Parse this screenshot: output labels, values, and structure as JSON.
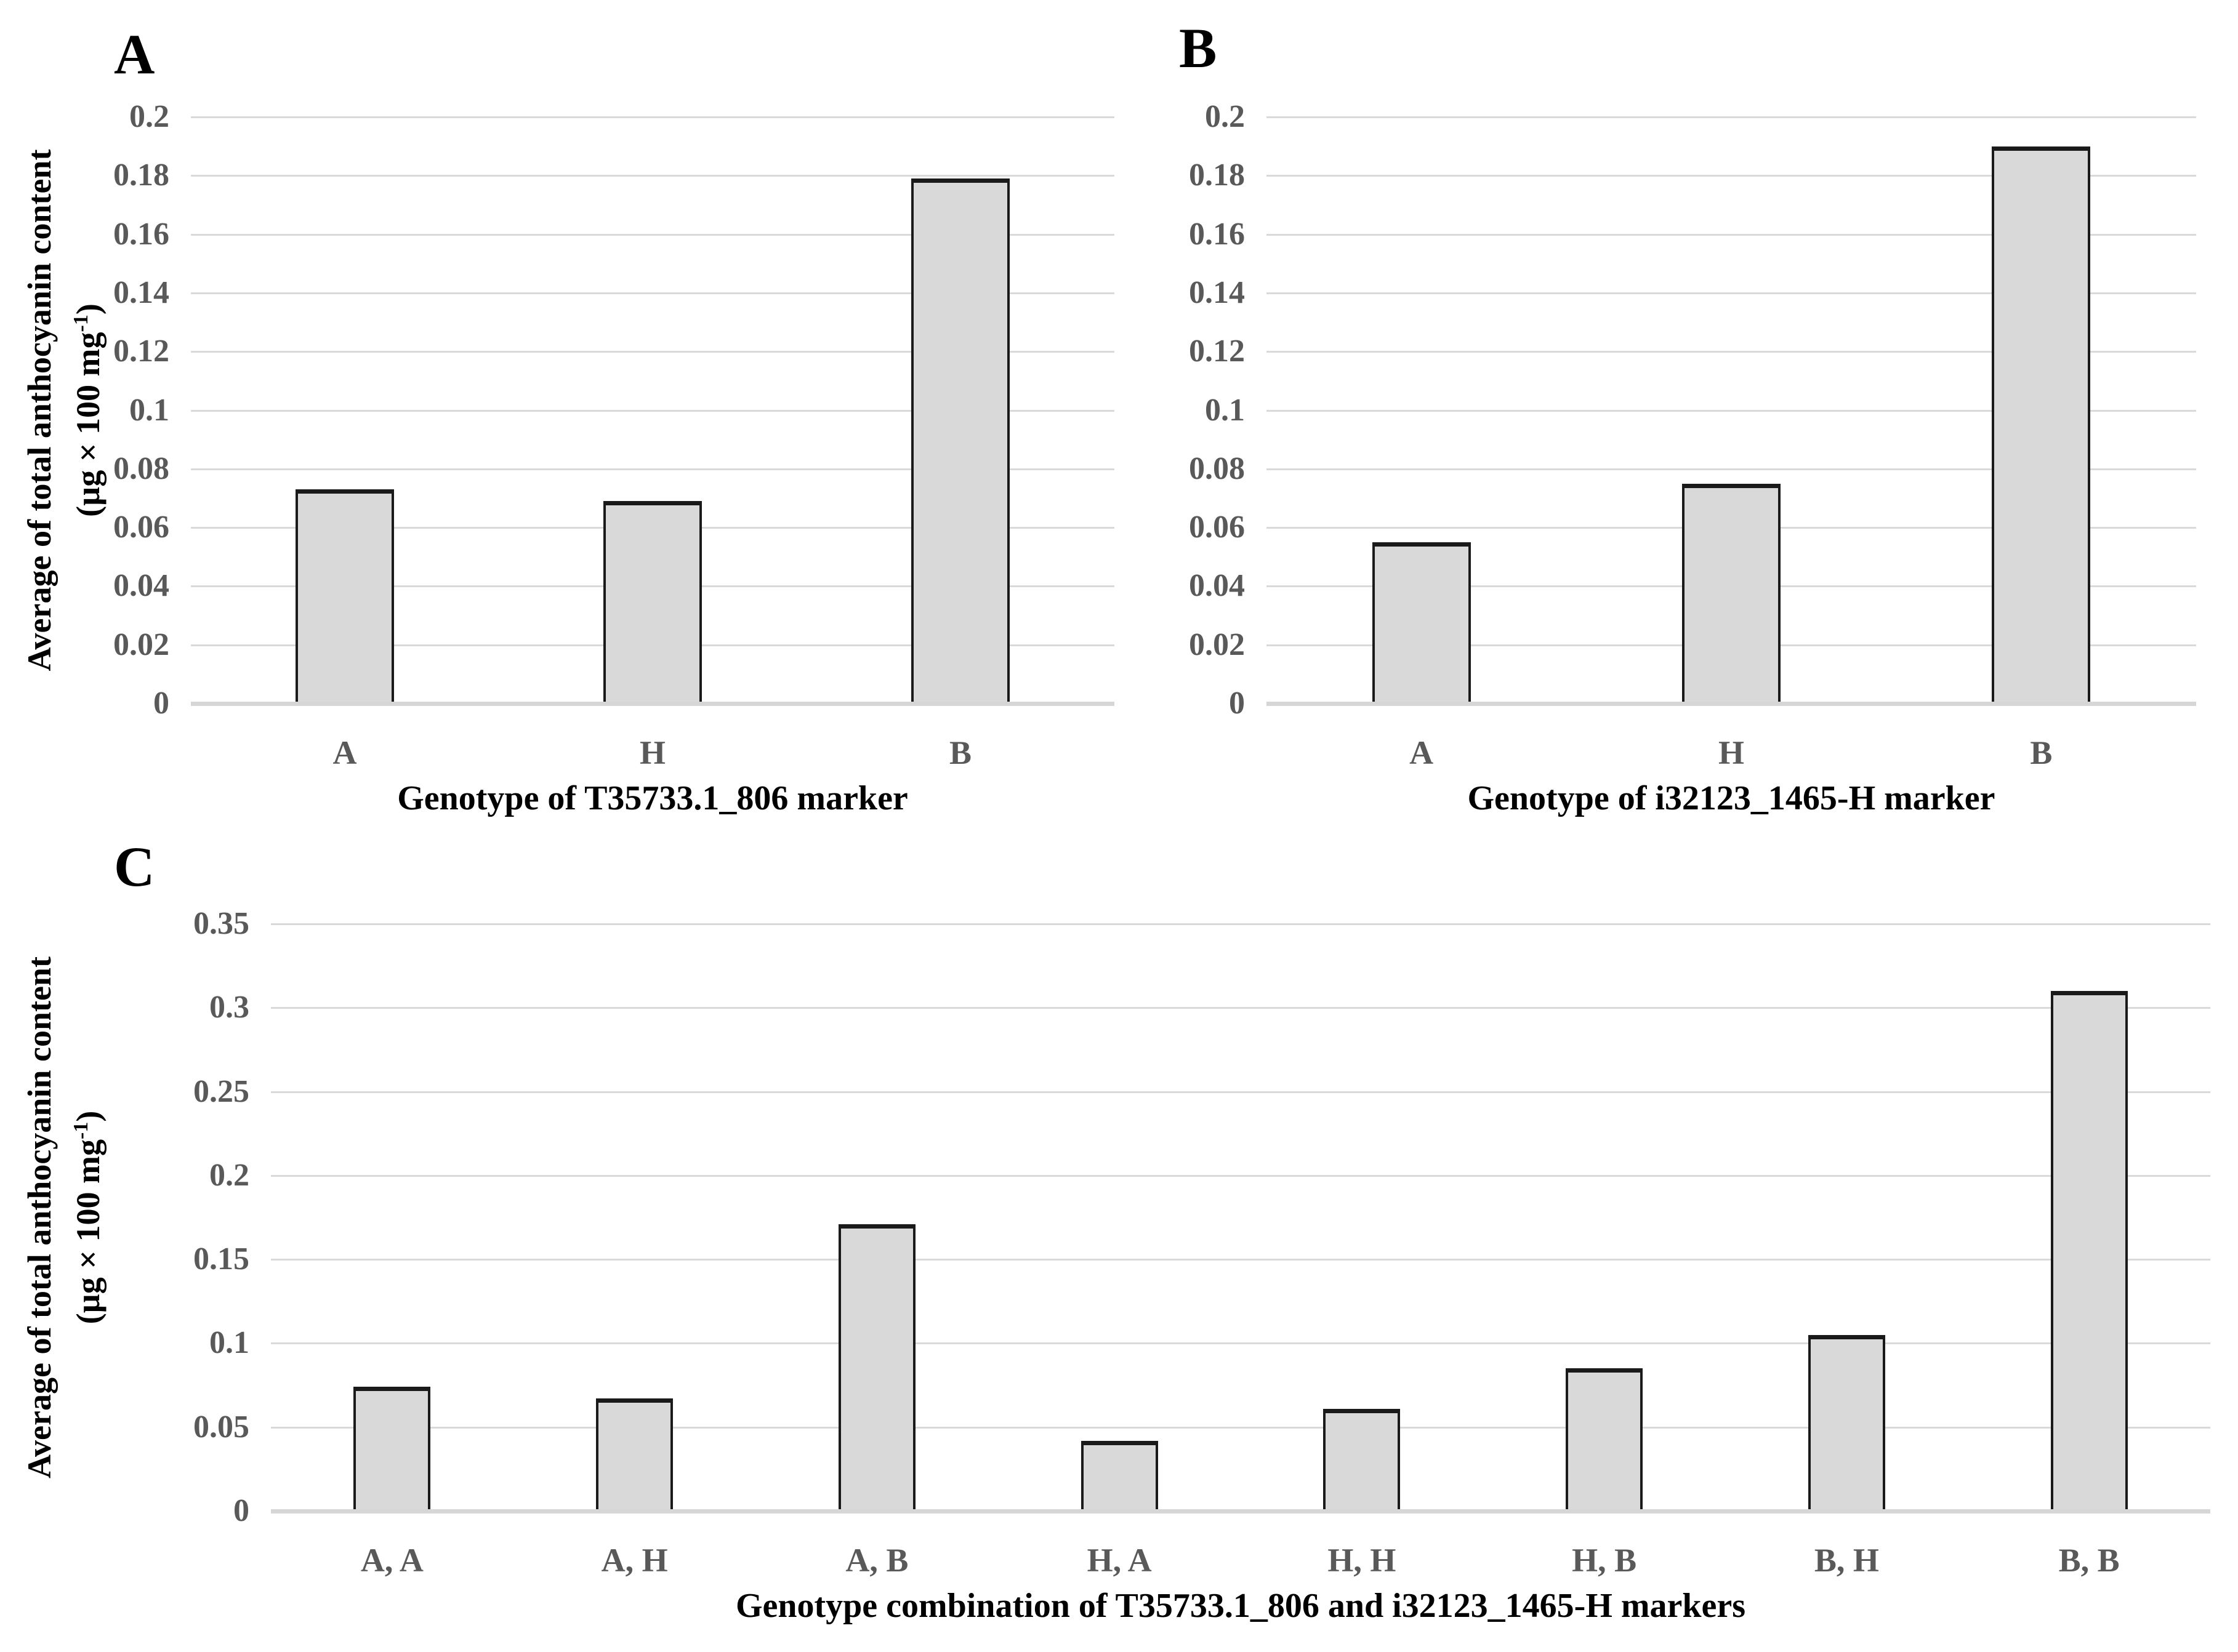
{
  "ylabel": {
    "line1": "Average of total anthocyanin content",
    "unit_prefix": "(µg × 100 mg",
    "unit_exp": "-1",
    "unit_suffix": ")"
  },
  "colors": {
    "bar_fill": "#d9d9d9",
    "bar_border": "#1a1a1a",
    "grid_line": "#d9d9d9",
    "tick_text": "#595959",
    "title_text": "#000000",
    "background": "#ffffff"
  },
  "chart_data": [
    {
      "type": "bar",
      "panel_label": "A",
      "title": "",
      "xlabel": "Genotype of T35733.1_806 marker",
      "ylabel": "Average of total anthocyanin content (µg × 100 mg⁻¹)",
      "categories": [
        "A",
        "H",
        "B"
      ],
      "values": [
        0.073,
        0.069,
        0.179
      ],
      "ylim": [
        0,
        0.2
      ],
      "ytick_step": 0.02,
      "ytick_labels": [
        "0.2",
        "0.18",
        "0.16",
        "0.14",
        "0.12",
        "0.1",
        "0.08",
        "0.06",
        "0.04",
        "0.02",
        "0"
      ],
      "grid": true,
      "legend_position": "none"
    },
    {
      "type": "bar",
      "panel_label": "B",
      "title": "",
      "xlabel": "Genotype of i32123_1465-H marker",
      "ylabel": "Average of total anthocyanin content (µg × 100 mg⁻¹)",
      "categories": [
        "A",
        "H",
        "B"
      ],
      "values": [
        0.055,
        0.075,
        0.19
      ],
      "ylim": [
        0,
        0.2
      ],
      "ytick_step": 0.02,
      "ytick_labels": [
        "0.2",
        "0.18",
        "0.16",
        "0.14",
        "0.12",
        "0.1",
        "0.08",
        "0.06",
        "0.04",
        "0.02",
        "0"
      ],
      "grid": true,
      "legend_position": "none"
    },
    {
      "type": "bar",
      "panel_label": "C",
      "title": "",
      "xlabel": "Genotype combination of T35733.1_806 and i32123_1465-H markers",
      "ylabel": "Average of total anthocyanin content (µg × 100 mg⁻¹)",
      "categories": [
        "A, A",
        "A, H",
        "A, B",
        "H, A",
        "H, H",
        "H, B",
        "B, H",
        "B, B"
      ],
      "values": [
        0.074,
        0.067,
        0.171,
        0.042,
        0.061,
        0.085,
        0.105,
        0.31
      ],
      "ylim": [
        0,
        0.35
      ],
      "ytick_step": 0.05,
      "ytick_labels": [
        "0.35",
        "0.3",
        "0.25",
        "0.2",
        "0.15",
        "0.1",
        "0.05",
        "0"
      ],
      "grid": true,
      "legend_position": "none"
    }
  ]
}
